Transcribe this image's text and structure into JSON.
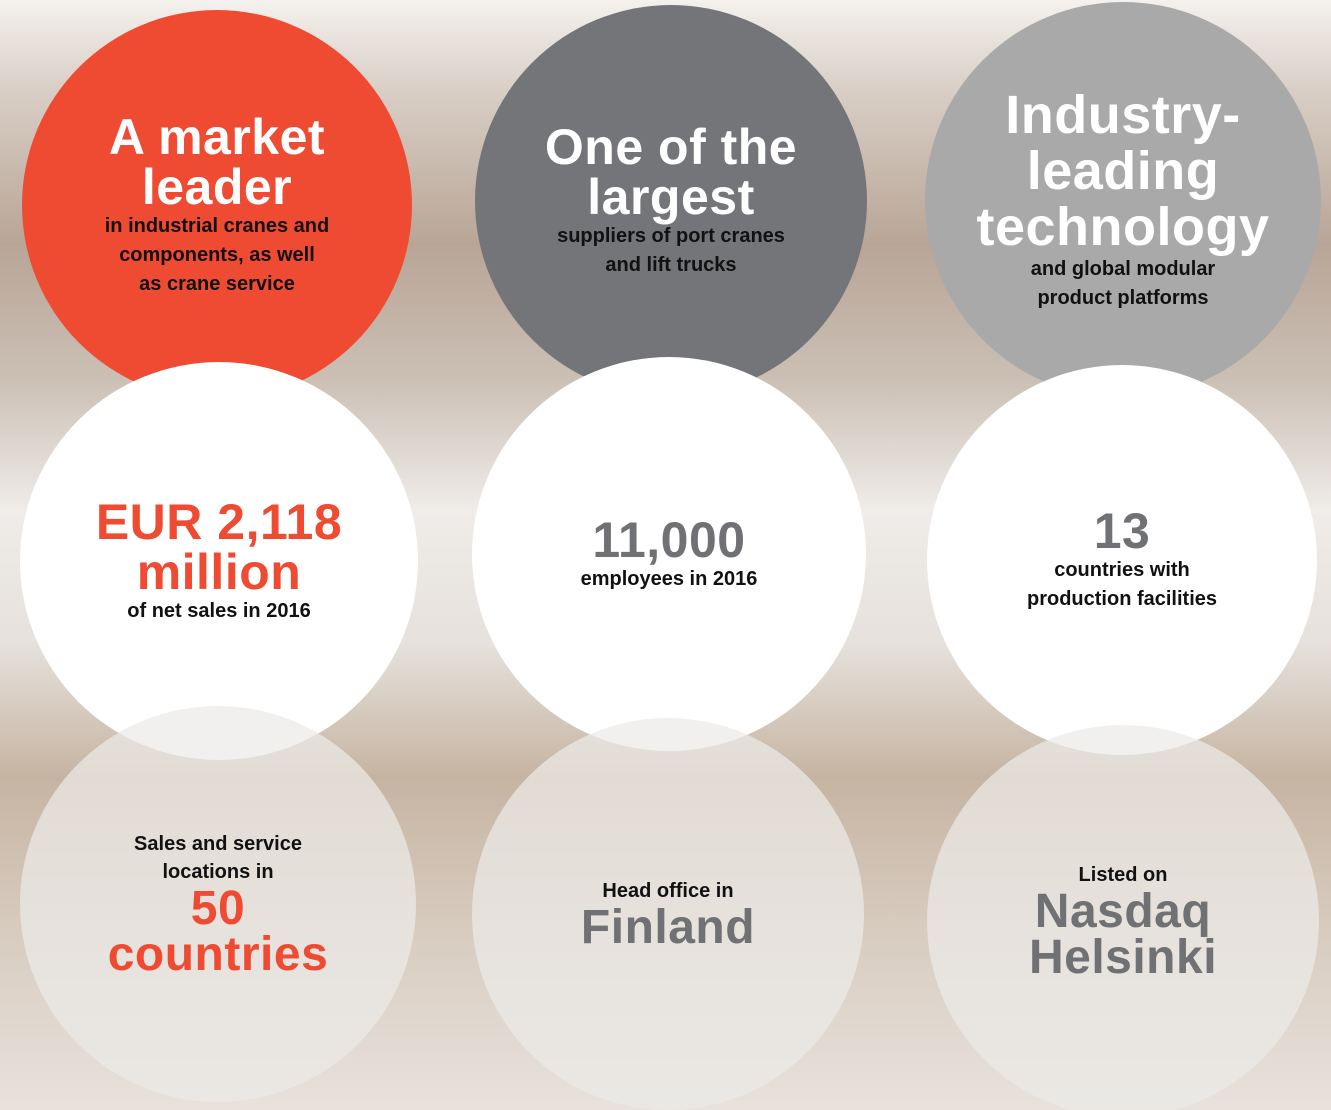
{
  "circles": [
    {
      "heading": [
        "A market",
        "leader"
      ],
      "text": [
        "in industrial cranes and",
        "components, as well",
        "as crane service"
      ]
    },
    {
      "heading": [
        "One of the",
        "largest"
      ],
      "text": [
        "suppliers of port cranes",
        "and lift trucks"
      ]
    },
    {
      "heading": [
        "Industry-",
        "leading",
        "technology"
      ],
      "text": [
        "and global modular",
        "product platforms"
      ]
    },
    {
      "heading": [
        "EUR 2,118",
        "million"
      ],
      "text": [
        "of net sales in 2016"
      ]
    },
    {
      "heading": [
        "11,000"
      ],
      "text": [
        "employees in 2016"
      ]
    },
    {
      "heading": [
        "13"
      ],
      "text": [
        "countries with",
        "production facilities"
      ]
    },
    {
      "intro": [
        "Sales and service",
        "locations in"
      ],
      "heading": [
        "50",
        "countries"
      ]
    },
    {
      "intro": [
        "Head office in"
      ],
      "heading": [
        "Finland"
      ]
    },
    {
      "intro": [
        "Listed on"
      ],
      "heading": [
        "Nasdaq",
        "Helsinki"
      ]
    }
  ]
}
